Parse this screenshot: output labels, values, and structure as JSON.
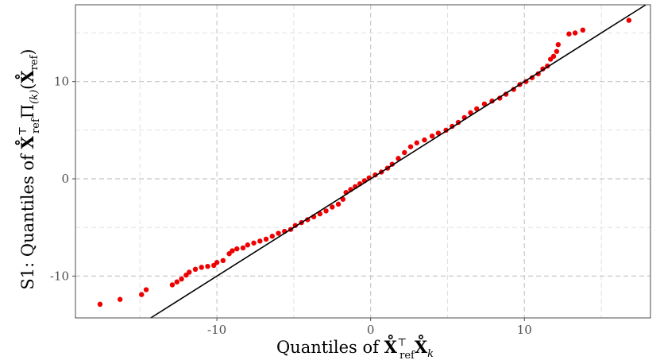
{
  "chart_data": {
    "type": "scatter",
    "xlabel": {
      "prefix": "Quantiles of ",
      "mathA": "X̊",
      "supA": "⊤",
      "subA": "ref",
      "mathB": "X̊",
      "subB": "k"
    },
    "ylabel": {
      "prefix": "S1: Quantiles of ",
      "mathA": "X̊",
      "supA": "⊤",
      "subA": "ref",
      "mid": "Π",
      "subMid": "(k)",
      "open": "(",
      "mathB": "X̊",
      "subB": "ref",
      "close": ")"
    },
    "xlim": [
      -19.2,
      18.2
    ],
    "ylim": [
      -14.3,
      17.9
    ],
    "x_ticks": [
      -10,
      0,
      10
    ],
    "x_tick_labels": [
      "-10",
      "0",
      "10"
    ],
    "y_ticks": [
      -10,
      0,
      10
    ],
    "y_tick_labels": [
      "-10",
      "0",
      "10"
    ],
    "grid": true,
    "reference_line": {
      "slope": 1,
      "intercept": 0,
      "color": "#000000"
    },
    "point_color": "#ee0000",
    "points": [
      [
        -17.6,
        -12.9
      ],
      [
        -16.3,
        -12.4
      ],
      [
        -14.9,
        -11.9
      ],
      [
        -14.6,
        -11.4
      ],
      [
        -12.9,
        -10.9
      ],
      [
        -12.6,
        -10.6
      ],
      [
        -12.3,
        -10.3
      ],
      [
        -12.0,
        -9.9
      ],
      [
        -11.8,
        -9.6
      ],
      [
        -11.4,
        -9.3
      ],
      [
        -11.0,
        -9.1
      ],
      [
        -10.6,
        -9.0
      ],
      [
        -10.2,
        -8.9
      ],
      [
        -10.0,
        -8.6
      ],
      [
        -9.6,
        -8.4
      ],
      [
        -9.2,
        -7.7
      ],
      [
        -9.0,
        -7.4
      ],
      [
        -8.7,
        -7.2
      ],
      [
        -8.3,
        -7.1
      ],
      [
        -8.0,
        -6.8
      ],
      [
        -7.6,
        -6.6
      ],
      [
        -7.2,
        -6.4
      ],
      [
        -6.8,
        -6.2
      ],
      [
        -6.4,
        -5.9
      ],
      [
        -6.0,
        -5.6
      ],
      [
        -5.6,
        -5.4
      ],
      [
        -5.2,
        -5.2
      ],
      [
        -4.9,
        -4.8
      ],
      [
        -4.5,
        -4.5
      ],
      [
        -4.1,
        -4.2
      ],
      [
        -3.7,
        -3.9
      ],
      [
        -3.3,
        -3.6
      ],
      [
        -2.9,
        -3.3
      ],
      [
        -2.5,
        -2.9
      ],
      [
        -2.1,
        -2.6
      ],
      [
        -1.8,
        -2.1
      ],
      [
        -1.6,
        -1.4
      ],
      [
        -1.3,
        -1.1
      ],
      [
        -1.0,
        -0.8
      ],
      [
        -0.7,
        -0.5
      ],
      [
        -0.4,
        -0.2
      ],
      [
        -0.1,
        0.1
      ],
      [
        0.3,
        0.4
      ],
      [
        0.7,
        0.7
      ],
      [
        1.1,
        1.1
      ],
      [
        1.4,
        1.5
      ],
      [
        1.8,
        2.1
      ],
      [
        2.2,
        2.7
      ],
      [
        2.6,
        3.3
      ],
      [
        3.0,
        3.7
      ],
      [
        3.5,
        4.0
      ],
      [
        4.0,
        4.4
      ],
      [
        4.4,
        4.7
      ],
      [
        4.9,
        5.0
      ],
      [
        5.3,
        5.4
      ],
      [
        5.7,
        5.8
      ],
      [
        6.1,
        6.3
      ],
      [
        6.5,
        6.8
      ],
      [
        6.9,
        7.2
      ],
      [
        7.4,
        7.7
      ],
      [
        7.9,
        8.0
      ],
      [
        8.4,
        8.3
      ],
      [
        8.8,
        8.7
      ],
      [
        9.3,
        9.2
      ],
      [
        9.7,
        9.7
      ],
      [
        10.1,
        10.0
      ],
      [
        10.5,
        10.4
      ],
      [
        10.9,
        10.8
      ],
      [
        11.2,
        11.3
      ],
      [
        11.5,
        11.6
      ],
      [
        11.7,
        12.3
      ],
      [
        11.9,
        12.6
      ],
      [
        12.1,
        13.1
      ],
      [
        12.2,
        13.8
      ],
      [
        12.9,
        14.9
      ],
      [
        13.3,
        15.0
      ],
      [
        13.8,
        15.3
      ],
      [
        16.8,
        16.3
      ]
    ]
  }
}
